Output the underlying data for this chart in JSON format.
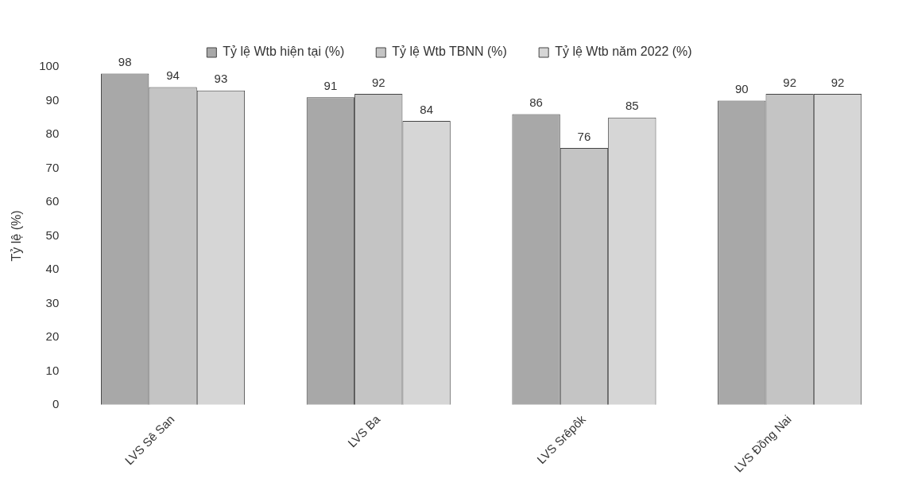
{
  "chart_data": {
    "type": "bar",
    "ylabel": "Tỷ lệ (%)",
    "categories": [
      "LVS Sê San",
      "LVS Ba",
      "LVS Srêpôk",
      "LVS Đồng Nai"
    ],
    "series": [
      {
        "name": "Tỷ lệ Wtb hiện tại (%)",
        "color": "#a8a8a8",
        "values": [
          98,
          91,
          86,
          90
        ]
      },
      {
        "name": "Tỷ lệ Wtb TBNN (%)",
        "color": "#c4c4c4",
        "values": [
          94,
          92,
          76,
          92
        ]
      },
      {
        "name": "Tỷ lệ Wtb năm 2022 (%)",
        "color": "#d6d6d6",
        "values": [
          93,
          84,
          85,
          92
        ]
      }
    ],
    "ylim": [
      0,
      100
    ],
    "yticks": [
      0,
      10,
      20,
      30,
      40,
      50,
      60,
      70,
      80,
      90,
      100
    ],
    "grid": false,
    "legend": "top",
    "data_labels": true
  }
}
